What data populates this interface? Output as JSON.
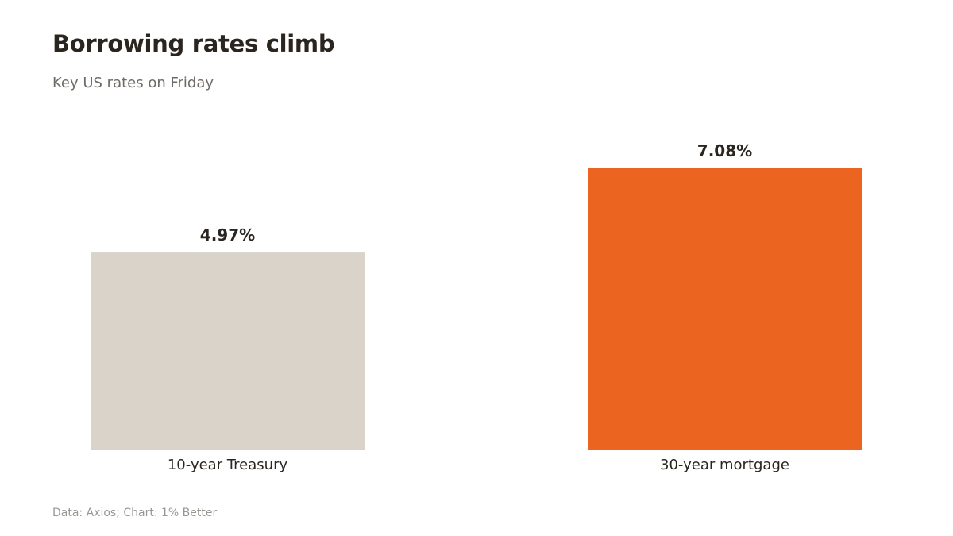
{
  "header": {
    "title": "Borrowing rates climb",
    "subtitle": "Key US rates on Friday"
  },
  "footer": {
    "source": "Data: Axios; Chart: 1% Better"
  },
  "chart_data": {
    "type": "bar",
    "title": "Borrowing rates climb",
    "subtitle": "Key US rates on Friday",
    "categories": [
      "10-year Treasury",
      "30-year mortgage"
    ],
    "values": [
      4.97,
      7.08
    ],
    "value_labels": [
      "4.97%",
      "7.08%"
    ],
    "colors": [
      "#d9d3c9",
      "#ec6520"
    ],
    "unit": "%",
    "ylim": [
      0,
      7.08
    ],
    "grid": false,
    "legend": "none"
  }
}
